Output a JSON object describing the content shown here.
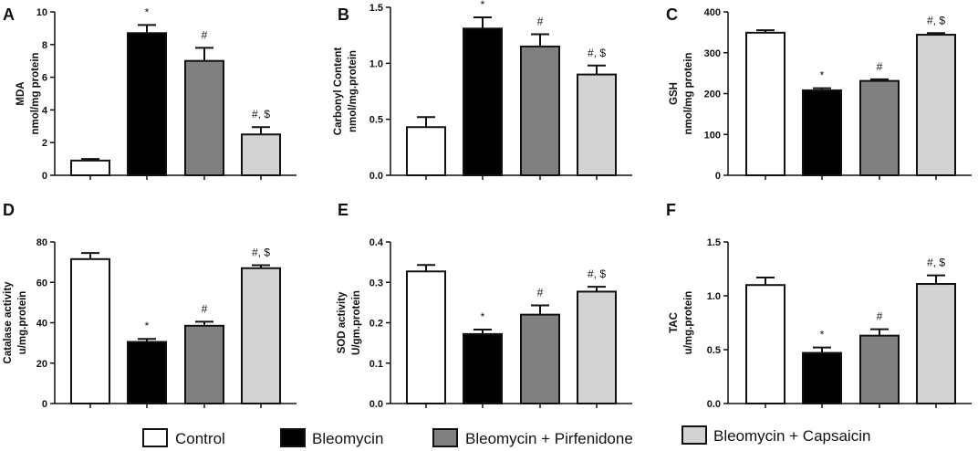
{
  "legend": [
    {
      "label": "Control",
      "color": "#ffffff"
    },
    {
      "label": "Bleomycin",
      "color": "#000000"
    },
    {
      "label": "Bleomycin + Pirfenidone",
      "color": "#808080"
    },
    {
      "label": "Bleomycin + Capsaicin",
      "color": "#d3d3d3"
    }
  ],
  "chart_data": [
    {
      "panel": "A",
      "type": "bar",
      "ylabel": [
        "MDA",
        "nmol/mg protein"
      ],
      "ylim": [
        0,
        10
      ],
      "yticks": [
        0,
        2,
        4,
        6,
        8,
        10
      ],
      "tick_labels": [
        "0",
        "2",
        "4",
        "6",
        "8",
        "10"
      ],
      "categories": [
        "Control",
        "Bleomycin",
        "Bleomycin + Pirfenidone",
        "Bleomycin + Capsaicin"
      ],
      "values": [
        0.9,
        8.7,
        7.0,
        2.5
      ],
      "errors": [
        0.1,
        0.5,
        0.8,
        0.45
      ],
      "annotations": [
        "",
        "*",
        "#",
        "#, $"
      ]
    },
    {
      "panel": "B",
      "type": "bar",
      "ylabel": [
        "Carbonyl Content",
        "nmol/mg.protein"
      ],
      "ylim": [
        0,
        1.5
      ],
      "yticks": [
        0,
        0.5,
        1.0,
        1.5
      ],
      "tick_labels": [
        "0.0",
        "0.5",
        "1.0",
        "1.5"
      ],
      "categories": [
        "Control",
        "Bleomycin",
        "Bleomycin + Pirfenidone",
        "Bleomycin + Capsaicin"
      ],
      "values": [
        0.43,
        1.31,
        1.15,
        0.9
      ],
      "errors": [
        0.09,
        0.1,
        0.11,
        0.08
      ],
      "annotations": [
        "",
        "*",
        "#",
        "#, $"
      ]
    },
    {
      "panel": "C",
      "type": "bar",
      "ylabel": [
        "GSH",
        "nmol/mg protein"
      ],
      "ylim": [
        0,
        400
      ],
      "yticks": [
        0,
        100,
        200,
        300,
        400
      ],
      "tick_labels": [
        "0",
        "100",
        "200",
        "300",
        "400"
      ],
      "categories": [
        "Control",
        "Bleomycin",
        "Bleomycin + Pirfenidone",
        "Bleomycin + Capsaicin"
      ],
      "values": [
        349,
        208,
        231,
        344
      ],
      "errors": [
        6,
        5,
        4,
        4
      ],
      "annotations": [
        "",
        "*",
        "#",
        "#, $"
      ]
    },
    {
      "panel": "D",
      "type": "bar",
      "ylabel": [
        "Catalase activity",
        "u/mg.protein"
      ],
      "ylim": [
        0,
        80
      ],
      "yticks": [
        0,
        20,
        40,
        60,
        80
      ],
      "tick_labels": [
        "0",
        "20",
        "40",
        "60",
        "80"
      ],
      "categories": [
        "Control",
        "Bleomycin",
        "Bleomycin + Pirfenidone",
        "Bleomycin + Capsaicin"
      ],
      "values": [
        71.5,
        30.5,
        38.5,
        67
      ],
      "errors": [
        3,
        1.5,
        2,
        1.5
      ],
      "annotations": [
        "",
        "*",
        "#",
        "#, $"
      ]
    },
    {
      "panel": "E",
      "type": "bar",
      "ylabel": [
        "SOD activity",
        "U/gm.protein"
      ],
      "ylim": [
        0,
        0.4
      ],
      "yticks": [
        0,
        0.1,
        0.2,
        0.3,
        0.4
      ],
      "tick_labels": [
        "0.0",
        "0.1",
        "0.2",
        "0.3",
        "0.4"
      ],
      "categories": [
        "Control",
        "Bleomycin",
        "Bleomycin + Pirfenidone",
        "Bleomycin + Capsaicin"
      ],
      "values": [
        0.327,
        0.172,
        0.22,
        0.277
      ],
      "errors": [
        0.016,
        0.011,
        0.023,
        0.012
      ],
      "annotations": [
        "",
        "*",
        "#",
        "#, $"
      ]
    },
    {
      "panel": "F",
      "type": "bar",
      "ylabel": [
        "TAC",
        "u/mg.protein"
      ],
      "ylim": [
        0,
        1.5
      ],
      "yticks": [
        0,
        0.5,
        1.0,
        1.5
      ],
      "tick_labels": [
        "0.0",
        "0.5",
        "1.0",
        "1.5"
      ],
      "categories": [
        "Control",
        "Bleomycin",
        "Bleomycin + Pirfenidone",
        "Bleomycin + Capsaicin"
      ],
      "values": [
        1.1,
        0.47,
        0.63,
        1.11
      ],
      "errors": [
        0.07,
        0.05,
        0.06,
        0.08
      ],
      "annotations": [
        "",
        "*",
        "#",
        "#, $"
      ]
    }
  ]
}
